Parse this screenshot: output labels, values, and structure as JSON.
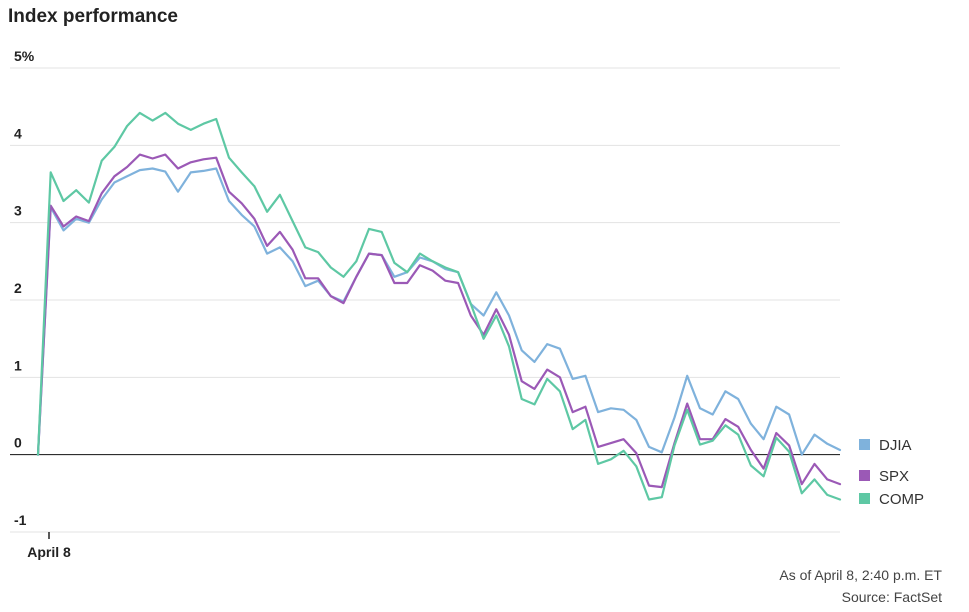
{
  "chart_data": {
    "type": "line",
    "title": "Index performance",
    "y_unit": "%",
    "ylim": [
      -1,
      5
    ],
    "y_ticks": [
      {
        "value": 5,
        "label": "5%"
      },
      {
        "value": 4,
        "label": "4"
      },
      {
        "value": 3,
        "label": "3"
      },
      {
        "value": 2,
        "label": "2"
      },
      {
        "value": 1,
        "label": "1"
      },
      {
        "value": 0,
        "label": "0"
      },
      {
        "value": -1,
        "label": "-1"
      }
    ],
    "x_tick_label": "April 8",
    "grid": true,
    "legend_position": "right",
    "series": [
      {
        "name": "DJIA",
        "color": "#7fb2dc",
        "values": [
          0,
          3.2,
          2.9,
          3.05,
          3.0,
          3.3,
          3.52,
          3.6,
          3.68,
          3.7,
          3.66,
          3.4,
          3.65,
          3.67,
          3.7,
          3.28,
          3.1,
          2.95,
          2.6,
          2.68,
          2.5,
          2.18,
          2.25,
          2.05,
          1.98,
          2.3,
          2.6,
          2.58,
          2.3,
          2.36,
          2.55,
          2.5,
          2.4,
          2.36,
          1.95,
          1.8,
          2.1,
          1.8,
          1.35,
          1.2,
          1.43,
          1.37,
          0.98,
          1.02,
          0.55,
          0.6,
          0.58,
          0.45,
          0.1,
          0.03,
          0.48,
          1.02,
          0.6,
          0.52,
          0.82,
          0.72,
          0.4,
          0.2,
          0.62,
          0.52,
          0.0,
          0.26,
          0.14,
          0.06
        ]
      },
      {
        "name": "SPX",
        "color": "#9b59b6",
        "values": [
          0,
          3.22,
          2.95,
          3.08,
          3.02,
          3.38,
          3.6,
          3.72,
          3.88,
          3.83,
          3.88,
          3.7,
          3.78,
          3.82,
          3.84,
          3.4,
          3.25,
          3.05,
          2.7,
          2.88,
          2.65,
          2.28,
          2.28,
          2.05,
          1.96,
          2.3,
          2.6,
          2.58,
          2.22,
          2.22,
          2.45,
          2.38,
          2.25,
          2.22,
          1.8,
          1.55,
          1.88,
          1.55,
          0.95,
          0.85,
          1.1,
          1.0,
          0.55,
          0.62,
          0.1,
          0.15,
          0.2,
          0.02,
          -0.4,
          -0.42,
          0.15,
          0.66,
          0.2,
          0.2,
          0.46,
          0.36,
          0.06,
          -0.18,
          0.28,
          0.12,
          -0.38,
          -0.12,
          -0.32,
          -0.38
        ]
      },
      {
        "name": "COMP",
        "color": "#5ec8a4",
        "values": [
          0,
          3.65,
          3.28,
          3.42,
          3.26,
          3.8,
          3.98,
          4.25,
          4.42,
          4.32,
          4.42,
          4.28,
          4.2,
          4.28,
          4.34,
          3.84,
          3.65,
          3.47,
          3.14,
          3.36,
          3.02,
          2.68,
          2.62,
          2.42,
          2.3,
          2.5,
          2.92,
          2.88,
          2.48,
          2.36,
          2.6,
          2.5,
          2.42,
          2.36,
          1.95,
          1.5,
          1.8,
          1.4,
          0.72,
          0.65,
          0.98,
          0.82,
          0.33,
          0.45,
          -0.12,
          -0.06,
          0.05,
          -0.15,
          -0.58,
          -0.55,
          0.12,
          0.58,
          0.13,
          0.18,
          0.38,
          0.26,
          -0.14,
          -0.28,
          0.22,
          0.04,
          -0.5,
          -0.32,
          -0.52,
          -0.58
        ]
      }
    ]
  },
  "footer": {
    "timestamp": "As of April 8, 2:40 p.m. ET",
    "source": "Source: FactSet"
  }
}
